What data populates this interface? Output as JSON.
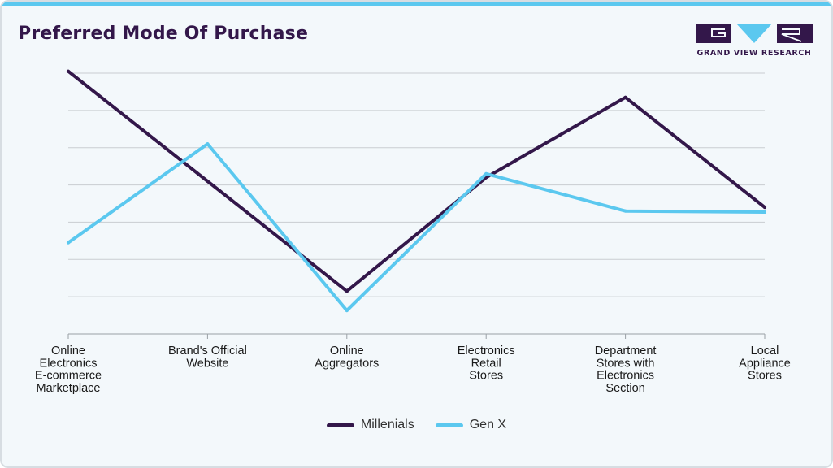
{
  "header": {
    "title": "Preferred Mode Of Purchase",
    "logo_text": "GRAND VIEW RESEARCH"
  },
  "colors": {
    "accent": "#5bc8ef",
    "brand": "#33174a",
    "millenials": "#33174a",
    "genx": "#5bc8ef",
    "grid": "#c9cdd1"
  },
  "chart_data": {
    "type": "line",
    "title": "Preferred Mode Of Purchase",
    "xlabel": "",
    "ylabel": "",
    "ylim": [
      0,
      7
    ],
    "grid": true,
    "legend_position": "bottom-center",
    "categories": [
      [
        "Online",
        "Electronics",
        "E-commerce",
        "Marketplace"
      ],
      [
        "Brand's Official",
        "Website"
      ],
      [
        "Online",
        "Aggregators"
      ],
      [
        "Electronics",
        "Retail",
        "Stores"
      ],
      [
        "Department",
        "Stores with",
        "Electronics",
        "Section"
      ],
      [
        "Local",
        "Appliance",
        "Stores"
      ]
    ],
    "series": [
      {
        "name": "Millenials",
        "color": "#33174a",
        "values": [
          7.05,
          4.1,
          1.15,
          4.2,
          6.35,
          3.4
        ]
      },
      {
        "name": "Gen X",
        "color": "#5bc8ef",
        "values": [
          2.45,
          5.1,
          0.63,
          4.3,
          3.3,
          3.27
        ]
      }
    ]
  }
}
